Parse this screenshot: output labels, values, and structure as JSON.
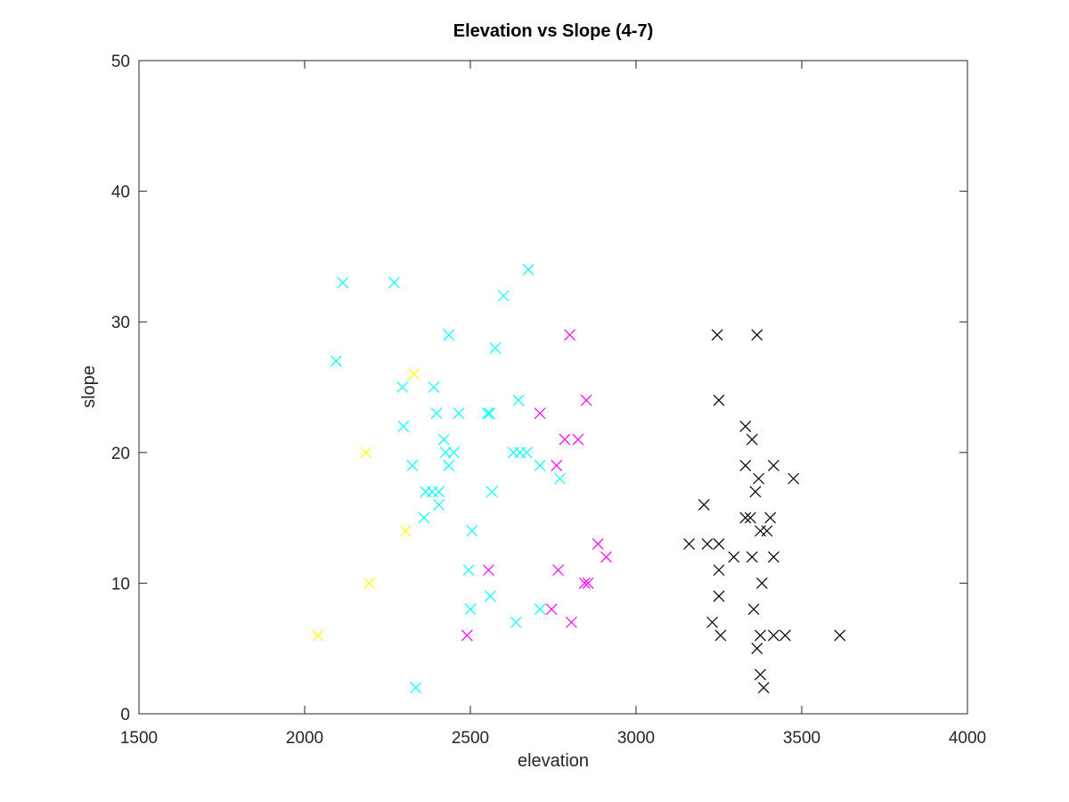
{
  "chart_data": {
    "type": "scatter",
    "title": "Elevation vs Slope (4-7)",
    "xlabel": "elevation",
    "ylabel": "slope",
    "xlim": [
      1500,
      4000
    ],
    "ylim": [
      0,
      50
    ],
    "xticks": [
      1500,
      2000,
      2500,
      3000,
      3500,
      4000
    ],
    "yticks": [
      0,
      10,
      20,
      30,
      40,
      50
    ],
    "grid": false,
    "legend": null,
    "marker": "x",
    "series": [
      {
        "color": "#00ffff",
        "points": [
          [
            2115,
            33
          ],
          [
            2270,
            33
          ],
          [
            2675,
            34
          ],
          [
            2600,
            32
          ],
          [
            2095,
            27
          ],
          [
            2295,
            25
          ],
          [
            2390,
            25
          ],
          [
            2435,
            29
          ],
          [
            2575,
            28
          ],
          [
            2298,
            22
          ],
          [
            2398,
            23
          ],
          [
            2465,
            23
          ],
          [
            2552,
            23
          ],
          [
            2558,
            23
          ],
          [
            2645,
            24
          ],
          [
            2420,
            21
          ],
          [
            2425,
            20
          ],
          [
            2450,
            20
          ],
          [
            2630,
            20
          ],
          [
            2650,
            20
          ],
          [
            2670,
            20
          ],
          [
            2325,
            19
          ],
          [
            2435,
            19
          ],
          [
            2710,
            19
          ],
          [
            2770,
            18
          ],
          [
            2365,
            17
          ],
          [
            2385,
            17
          ],
          [
            2405,
            17
          ],
          [
            2565,
            17
          ],
          [
            2405,
            16
          ],
          [
            2360,
            15
          ],
          [
            2505,
            14
          ],
          [
            2495,
            11
          ],
          [
            2560,
            9
          ],
          [
            2500,
            8
          ],
          [
            2638,
            7
          ],
          [
            2710,
            8
          ],
          [
            2335,
            2
          ]
        ]
      },
      {
        "color": "#ffff00",
        "points": [
          [
            2330,
            26
          ],
          [
            2185,
            20
          ],
          [
            2305,
            14
          ],
          [
            2195,
            10
          ],
          [
            2040,
            6
          ]
        ]
      },
      {
        "color": "#ff00ff",
        "points": [
          [
            2800,
            29
          ],
          [
            2710,
            23
          ],
          [
            2850,
            24
          ],
          [
            2785,
            21
          ],
          [
            2825,
            21
          ],
          [
            2760,
            19
          ],
          [
            2885,
            13
          ],
          [
            2910,
            12
          ],
          [
            2555,
            11
          ],
          [
            2765,
            11
          ],
          [
            2845,
            10
          ],
          [
            2855,
            10
          ],
          [
            2745,
            8
          ],
          [
            2805,
            7
          ],
          [
            2490,
            6
          ]
        ]
      },
      {
        "color": "#000000",
        "points": [
          [
            3245,
            29
          ],
          [
            3365,
            29
          ],
          [
            3250,
            24
          ],
          [
            3330,
            22
          ],
          [
            3350,
            21
          ],
          [
            3330,
            19
          ],
          [
            3415,
            19
          ],
          [
            3370,
            18
          ],
          [
            3475,
            18
          ],
          [
            3360,
            17
          ],
          [
            3205,
            16
          ],
          [
            3330,
            15
          ],
          [
            3345,
            15
          ],
          [
            3405,
            15
          ],
          [
            3375,
            14
          ],
          [
            3395,
            14
          ],
          [
            3160,
            13
          ],
          [
            3215,
            13
          ],
          [
            3250,
            13
          ],
          [
            3295,
            12
          ],
          [
            3350,
            12
          ],
          [
            3415,
            12
          ],
          [
            3250,
            11
          ],
          [
            3380,
            10
          ],
          [
            3250,
            9
          ],
          [
            3355,
            8
          ],
          [
            3230,
            7
          ],
          [
            3255,
            6
          ],
          [
            3375,
            6
          ],
          [
            3415,
            6
          ],
          [
            3450,
            6
          ],
          [
            3615,
            6
          ],
          [
            3365,
            5
          ],
          [
            3375,
            3
          ],
          [
            3385,
            2
          ]
        ]
      }
    ]
  }
}
